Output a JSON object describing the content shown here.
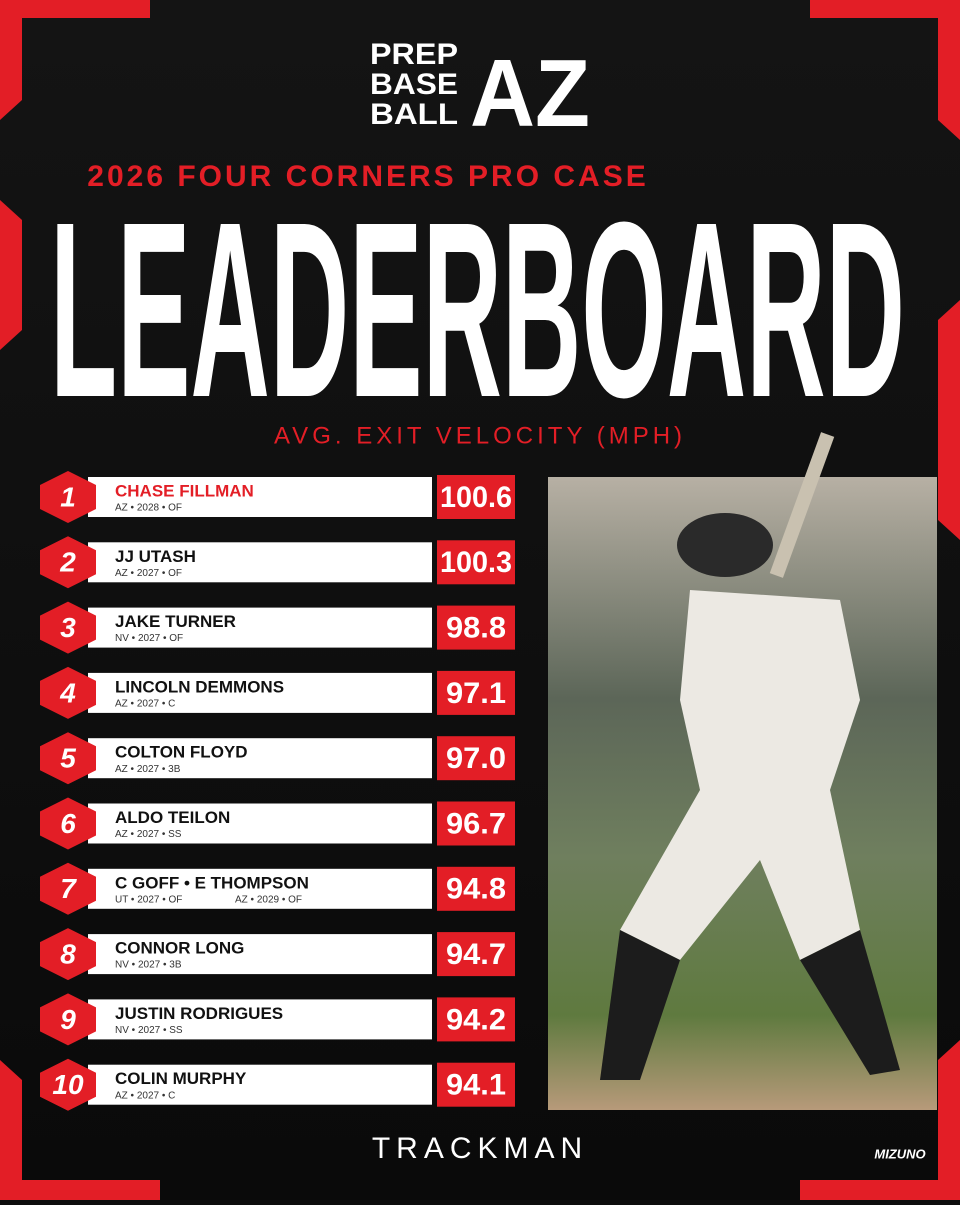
{
  "logo": {
    "lines": [
      "PREP",
      "BASE",
      "BALL"
    ],
    "mark": "AZ"
  },
  "subtitle": "2026 FOUR CORNERS PRO CASE",
  "title": "LEADERBOARD",
  "metric": "AVG. EXIT VELOCITY (MPH)",
  "rows": [
    {
      "rank": "1",
      "name": "CHASE FILLMAN",
      "details": [
        "AZ • 2028 • OF"
      ],
      "value": "100.6"
    },
    {
      "rank": "2",
      "name": "JJ UTASH",
      "details": [
        "AZ • 2027 • OF"
      ],
      "value": "100.3"
    },
    {
      "rank": "3",
      "name": "JAKE TURNER",
      "details": [
        "NV • 2027 • OF"
      ],
      "value": "98.8"
    },
    {
      "rank": "4",
      "name": "LINCOLN DEMMONS",
      "details": [
        "AZ • 2027 • C"
      ],
      "value": "97.1"
    },
    {
      "rank": "5",
      "name": "COLTON FLOYD",
      "details": [
        "AZ • 2027 • 3B"
      ],
      "value": "97.0"
    },
    {
      "rank": "6",
      "name": "ALDO TEILON",
      "details": [
        "AZ • 2027 • SS"
      ],
      "value": "96.7"
    },
    {
      "rank": "7",
      "name": "C GOFF • E THOMPSON",
      "details": [
        "UT • 2027 • OF",
        "AZ • 2029 • OF"
      ],
      "value": "94.8"
    },
    {
      "rank": "8",
      "name": "CONNOR LONG",
      "details": [
        "NV • 2027 • 3B"
      ],
      "value": "94.7"
    },
    {
      "rank": "9",
      "name": "JUSTIN RODRIGUES",
      "details": [
        "NV • 2027 • SS"
      ],
      "value": "94.2"
    },
    {
      "rank": "10",
      "name": "COLIN MURPHY",
      "details": [
        "AZ • 2027 • C"
      ],
      "value": "94.1"
    }
  ],
  "footer": {
    "sponsor": "TRACKMAN",
    "brand": "MIZUNO"
  }
}
